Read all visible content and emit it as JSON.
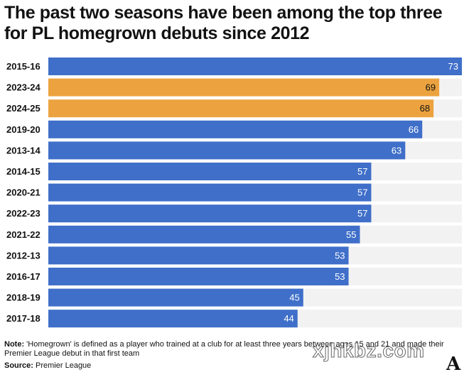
{
  "chart_data": {
    "type": "bar",
    "orientation": "horizontal",
    "title": "The past two seasons have been among the top three for PL homegrown debuts since 2012",
    "categories": [
      "2015-16",
      "2023-24",
      "2024-25",
      "2019-20",
      "2013-14",
      "2014-15",
      "2020-21",
      "2022-23",
      "2021-22",
      "2012-13",
      "2016-17",
      "2018-19",
      "2017-18"
    ],
    "values": [
      73,
      69,
      68,
      66,
      63,
      57,
      57,
      57,
      55,
      53,
      53,
      45,
      44
    ],
    "highlighted": [
      "2023-24",
      "2024-25"
    ],
    "xlim": [
      0,
      73
    ],
    "grid": false
  },
  "colors": {
    "bar": "#3f6fc9",
    "highlight": "#eca33f",
    "track": "#f2f2f2",
    "text": "#121212"
  },
  "footer": {
    "note_label": "Note:",
    "note_text": " 'Homegrown' is defined as a player who trained at a club for at least three years between ages 15 and 21 and made their Premier League debut in that first team",
    "source_label": "Source:",
    "source_text": " Premier League"
  },
  "watermark": "xjhkbz.com",
  "logo": "A"
}
